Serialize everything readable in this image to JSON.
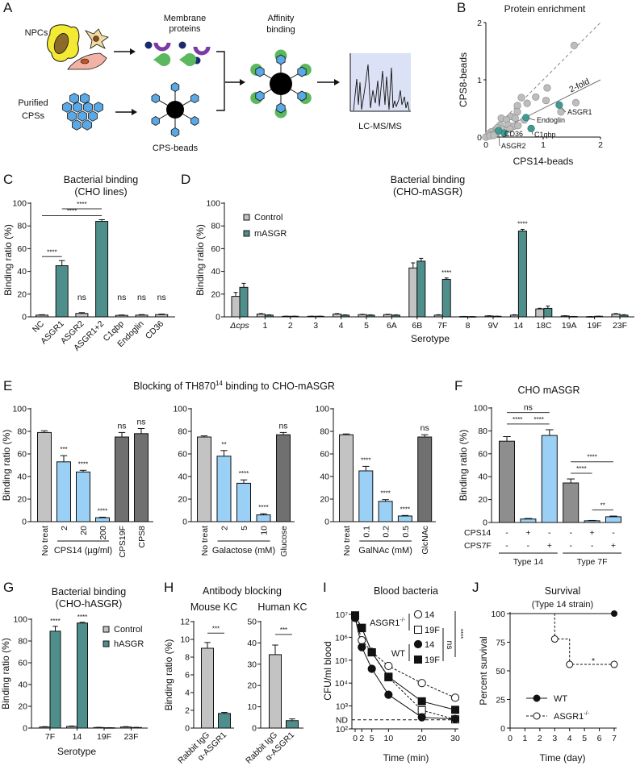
{
  "figure": {
    "panel_labels": [
      "A",
      "B",
      "C",
      "D",
      "E",
      "F",
      "G",
      "H",
      "I",
      "J"
    ]
  },
  "colors": {
    "teal": "#4f8f8b",
    "light_gray": "#c3c3c3",
    "light_blue": "#9ad0f5",
    "dark_gray": "#707070",
    "mid_gray": "#8e8e8e",
    "highlight_point": "#3f9a92",
    "gray_point": "#bdbdbd",
    "msms_bg": "#dce2f6"
  },
  "schematic": {
    "npcs": "NPCs",
    "membrane_proteins": [
      "Membrane",
      "proteins"
    ],
    "affinity_binding": [
      "Affinity",
      "binding"
    ],
    "purified_cpss": [
      "Purified",
      "CPSs"
    ],
    "cps_beads": "CPS-beads",
    "lcms": "LC-MS/MS"
  },
  "panel_e_title": {
    "prefix": "Blocking of TH870",
    "superscript": "14",
    "suffix": " binding to CHO-mASGR"
  },
  "panel_h_title": "Antibody blocking",
  "chart_data": [
    {
      "type": "scatter",
      "title": "Protein enrichment",
      "xlabel": "CPS14-beads",
      "ylabel": "CPS8-beads",
      "xlim": [
        0,
        2
      ],
      "ylim": [
        0,
        2
      ],
      "xticks": [
        0,
        1,
        2
      ],
      "yticks": [
        0,
        1,
        2
      ],
      "points": [
        [
          1.54,
          1.6
        ],
        [
          1.07,
          0.86
        ],
        [
          1.57,
          0.6
        ],
        [
          1.31,
          0.44
        ],
        [
          1.05,
          0.64
        ],
        [
          0.87,
          0.7
        ],
        [
          0.72,
          0.59
        ],
        [
          0.62,
          0.69
        ],
        [
          0.55,
          0.55
        ],
        [
          0.55,
          0.44
        ],
        [
          0.44,
          0.36
        ],
        [
          0.51,
          0.33
        ],
        [
          0.67,
          0.3
        ],
        [
          0.27,
          0.33
        ],
        [
          0.36,
          0.3
        ],
        [
          0.39,
          0.21
        ],
        [
          0.49,
          0.19
        ],
        [
          0.56,
          0.2
        ],
        [
          0.42,
          0.14
        ],
        [
          0.25,
          0.21
        ],
        [
          0.28,
          0.14
        ],
        [
          0.16,
          0.12
        ],
        [
          0.09,
          0.09
        ],
        [
          0.05,
          0.05
        ],
        [
          0.12,
          0.05
        ],
        [
          0.17,
          0.06
        ],
        [
          0.0,
          0.0
        ],
        [
          0.07,
          0.02
        ],
        [
          0.2,
          0.16
        ],
        [
          0.14,
          0.03
        ]
      ],
      "highlighted": [
        {
          "label": "ASGR1",
          "x": 1.28,
          "y": 0.56
        },
        {
          "label": "Endoglin",
          "x": 0.7,
          "y": 0.34
        },
        {
          "label": "C1qbp",
          "x": 0.79,
          "y": 0.15
        },
        {
          "label": "CD36",
          "x": 0.32,
          "y": 0.07
        },
        {
          "label": "ASGR2",
          "x": 0.22,
          "y": 0.11
        }
      ],
      "reference_lines": [
        {
          "slope": 1,
          "style": "dashed"
        },
        {
          "slope": 0.5,
          "style": "solid",
          "label": "2-fold"
        }
      ]
    },
    {
      "type": "bar",
      "title": [
        "Bacterial binding",
        "(CHO lines)"
      ],
      "ylabel": "Binding ratio (%)",
      "ylim": [
        0,
        100
      ],
      "yticks": [
        0,
        20,
        40,
        60,
        80,
        100
      ],
      "categories": [
        "NC",
        "ASGR1",
        "ASGR2",
        "ASGR1+2",
        "C1qbp",
        "Endoglin",
        "CD36"
      ],
      "series": [
        {
          "values": [
            1.5,
            45,
            3,
            84,
            1.3,
            1.5,
            2
          ],
          "errors": [
            0.4,
            4.5,
            0.7,
            1.5,
            0.4,
            0.5,
            0.5
          ],
          "colors": [
            "#c3c3c3",
            "#4f8f8b",
            "#c3c3c3",
            "#4f8f8b",
            "#c3c3c3",
            "#c3c3c3",
            "#c3c3c3"
          ]
        }
      ],
      "significance": [
        "",
        "",
        "ns",
        "",
        "ns",
        "ns",
        "ns"
      ],
      "brackets": [
        {
          "from": 0,
          "to": 1,
          "text": "****"
        },
        {
          "from": 0,
          "to": 3,
          "text": "****"
        },
        {
          "from": 1,
          "to": 3,
          "text": "****"
        }
      ]
    },
    {
      "type": "bar",
      "title": [
        "Bacterial binding",
        "(CHO-mASGR)"
      ],
      "ylabel": "Binding ratio (%)",
      "xlabel": "Serotype",
      "ylim": [
        0,
        100
      ],
      "yticks": [
        0,
        20,
        40,
        60,
        80,
        100
      ],
      "categories": [
        "Δcps",
        "1",
        "2",
        "3",
        "4",
        "5",
        "6A",
        "6B",
        "7F",
        "8",
        "9V",
        "14",
        "18C",
        "19A",
        "19F",
        "23F"
      ],
      "series": [
        {
          "name": "Control",
          "color": "#c3c3c3",
          "values": [
            18,
            2.5,
            0.5,
            0.5,
            2.5,
            2,
            2,
            43,
            1.5,
            0.3,
            0.8,
            1.5,
            7,
            0.8,
            0.2,
            2.5
          ],
          "errors": [
            3.5,
            0.4,
            0.1,
            0.1,
            0.4,
            0.3,
            0.3,
            4.5,
            0.4,
            0.1,
            0.2,
            0.4,
            0.6,
            0.2,
            0.1,
            0.4
          ]
        },
        {
          "name": "mASGR",
          "color": "#4f8f8b",
          "values": [
            26,
            1.5,
            0.5,
            0.5,
            1.5,
            1.5,
            1.5,
            49,
            33,
            0.2,
            0.5,
            75.5,
            7.5,
            0.3,
            0.5,
            1.5
          ],
          "errors": [
            3.5,
            0.3,
            0.1,
            0.1,
            0.3,
            0.3,
            0.3,
            2.5,
            1.2,
            0.1,
            0.1,
            1.5,
            2,
            0.1,
            0.1,
            0.4
          ],
          "significance": [
            "",
            "",
            "",
            "",
            "",
            "",
            "",
            "",
            "****",
            "",
            "",
            "****",
            "",
            "",
            "",
            ""
          ]
        }
      ]
    },
    {
      "type": "bar",
      "ylabel": "Binding ratio (%)",
      "ylim": [
        0,
        100
      ],
      "yticks": [
        0,
        20,
        40,
        60,
        80,
        100
      ],
      "categories": [
        "No treat",
        "2",
        "20",
        "200",
        "CPS19F",
        "CPS8"
      ],
      "series": [
        {
          "values": [
            79,
            53,
            44,
            3.5,
            75,
            78
          ],
          "errors": [
            1.5,
            5.5,
            1.5,
            0.5,
            4,
            4.5
          ],
          "colors": [
            "#c3c3c3",
            "#9ad0f5",
            "#9ad0f5",
            "#9ad0f5",
            "#707070",
            "#707070"
          ]
        }
      ],
      "significance": [
        "",
        "***",
        "****",
        "****",
        "ns",
        "ns"
      ],
      "group": {
        "label": "CPS14 (µg/ml)",
        "from": 1,
        "to": 3
      }
    },
    {
      "type": "bar",
      "ylim": [
        0,
        100
      ],
      "yticks": [
        0,
        20,
        40,
        60,
        80,
        100
      ],
      "categories": [
        "No treat",
        "2",
        "5",
        "10",
        "Glucose"
      ],
      "series": [
        {
          "values": [
            75,
            58,
            34,
            6,
            77
          ],
          "errors": [
            1,
            5,
            3,
            1,
            2
          ],
          "colors": [
            "#c3c3c3",
            "#9ad0f5",
            "#9ad0f5",
            "#9ad0f5",
            "#707070"
          ]
        }
      ],
      "significance": [
        "",
        "**",
        "****",
        "****",
        "ns"
      ],
      "group": {
        "label": "Galactose (mM)",
        "from": 1,
        "to": 3
      }
    },
    {
      "type": "bar",
      "ylim": [
        0,
        100
      ],
      "yticks": [
        0,
        20,
        40,
        60,
        80,
        100
      ],
      "categories": [
        "No treat",
        "0.1",
        "0.2",
        "0.5",
        "GlcNAc"
      ],
      "series": [
        {
          "values": [
            77,
            45,
            18,
            5,
            75
          ],
          "errors": [
            0.7,
            4,
            1.5,
            0.5,
            2
          ],
          "colors": [
            "#c3c3c3",
            "#9ad0f5",
            "#9ad0f5",
            "#9ad0f5",
            "#707070"
          ]
        }
      ],
      "significance": [
        "",
        "****",
        "****",
        "****",
        "ns"
      ],
      "group": {
        "label": "GalNAc (mM)",
        "from": 1,
        "to": 3
      }
    },
    {
      "type": "bar",
      "title": "CHO mASGR",
      "ylabel": "Binding ratio (%)",
      "ylim": [
        0,
        100
      ],
      "yticks": [
        0,
        20,
        40,
        60,
        80,
        100
      ],
      "categories": [
        "",
        "",
        "",
        "",
        "",
        ""
      ],
      "series": [
        {
          "values": [
            71,
            3,
            76,
            34.5,
            1.5,
            5
          ],
          "errors": [
            4,
            0.5,
            5,
            3.5,
            0.3,
            0.6
          ],
          "colors": [
            "#8e8e8e",
            "#9ad0f5",
            "#9ad0f5",
            "#8e8e8e",
            "#9ad0f5",
            "#9ad0f5"
          ]
        }
      ],
      "treatments": [
        {
          "label": "CPS14",
          "values": [
            "-",
            "+",
            "-",
            "-",
            "+",
            "-"
          ]
        },
        {
          "label": "CPS7F",
          "values": [
            "-",
            "-",
            "+",
            "-",
            "-",
            "+"
          ]
        }
      ],
      "groups": [
        {
          "label": "Type 14",
          "from": 0,
          "to": 2
        },
        {
          "label": "Type 7F",
          "from": 3,
          "to": 5
        }
      ],
      "brackets": [
        {
          "from": 0,
          "to": 2,
          "text": "ns"
        },
        {
          "from": 0,
          "to": 1,
          "text": "****"
        },
        {
          "from": 1,
          "to": 2,
          "text": "****"
        },
        {
          "from": 3,
          "to": 5,
          "text": "****"
        },
        {
          "from": 3,
          "to": 4,
          "text": "****"
        },
        {
          "from": 4,
          "to": 5,
          "text": "**"
        }
      ]
    },
    {
      "type": "bar",
      "title": [
        "Bacterial binding",
        "(CHO-hASGR)"
      ],
      "ylabel": "Binding ratio (%)",
      "xlabel": "Serotype",
      "ylim": [
        0,
        100
      ],
      "yticks": [
        0,
        20,
        40,
        60,
        80,
        100
      ],
      "categories": [
        "7F",
        "14",
        "19F",
        "23F"
      ],
      "series": [
        {
          "name": "Control",
          "color": "#c3c3c3",
          "values": [
            1,
            1.5,
            0.5,
            1
          ],
          "errors": [
            0.3,
            0.4,
            0.2,
            0.3
          ]
        },
        {
          "name": "hASGR",
          "color": "#4f8f8b",
          "values": [
            89,
            96.5,
            0.3,
            0.5
          ],
          "errors": [
            4.5,
            0.7,
            0.1,
            0.2
          ],
          "significance": [
            "****",
            "****",
            "",
            ""
          ]
        }
      ]
    },
    {
      "type": "bar",
      "title": "Mouse KC",
      "ylabel": "Binding ratio (%)",
      "ylim": [
        0,
        12
      ],
      "yticks": [
        0,
        2,
        4,
        6,
        8,
        10,
        12
      ],
      "categories": [
        "Rabbit IgG",
        "α-ASGR1"
      ],
      "series": [
        {
          "values": [
            9,
            1.65
          ],
          "errors": [
            0.65,
            0.12
          ],
          "colors": [
            "#c3c3c3",
            "#4f8f8b"
          ]
        }
      ],
      "brackets": [
        {
          "from": 0,
          "to": 1,
          "text": "***"
        }
      ]
    },
    {
      "type": "bar",
      "title": "Human KC",
      "ylim": [
        0,
        50
      ],
      "yticks": [
        0,
        10,
        20,
        30,
        40,
        50
      ],
      "categories": [
        "Rabbit IgG",
        "α-ASGR1"
      ],
      "series": [
        {
          "values": [
            34.5,
            3.5
          ],
          "errors": [
            4.5,
            0.8
          ],
          "colors": [
            "#c3c3c3",
            "#4f8f8b"
          ]
        }
      ],
      "brackets": [
        {
          "from": 0,
          "to": 1,
          "text": "***"
        }
      ]
    },
    {
      "type": "line",
      "title": "Blood bacteria",
      "xlabel": "Time (min)",
      "ylabel": "CFU/ml blood",
      "yscale": "log",
      "x": [
        0,
        2,
        5,
        10,
        20,
        30
      ],
      "xticks": [
        0,
        2,
        5,
        10,
        20,
        30
      ],
      "xtick_labels": [
        "0",
        "2",
        "5",
        "10",
        "20",
        "30"
      ],
      "ylim": [
        100,
        10000000
      ],
      "ytick_labels": [
        "10²",
        "10³",
        "10⁴",
        "10⁵",
        "10⁶",
        "10⁷"
      ],
      "nd_label": "ND",
      "nd_value": 250,
      "legend_groups": [
        {
          "label": "ASGR1",
          "superscript": "-/-"
        },
        {
          "label": "WT"
        }
      ],
      "series": [
        {
          "group": 0,
          "name": "14",
          "marker": "circle",
          "filled": false,
          "dashed": true,
          "values": [
            8000000,
            740000,
            230000,
            56000,
            10000,
            2300
          ]
        },
        {
          "group": 0,
          "name": "19F",
          "marker": "square",
          "filled": false,
          "dashed": true,
          "values": [
            9000000,
            2500000,
            220000,
            18000,
            650,
            260
          ]
        },
        {
          "group": 1,
          "name": "14",
          "marker": "circle",
          "filled": true,
          "dashed": false,
          "values": [
            7000000,
            370000,
            42000,
            3100,
            320,
            270
          ]
        },
        {
          "group": 1,
          "name": "19F",
          "marker": "square",
          "filled": true,
          "dashed": false,
          "values": [
            9000000,
            2600000,
            220000,
            19000,
            1600,
            680
          ]
        }
      ],
      "stats": [
        {
          "text": "ns"
        },
        {
          "text": "****"
        }
      ]
    },
    {
      "type": "line",
      "title": [
        "Survival",
        "(Type 14 strain)"
      ],
      "xlabel": "Time (day)",
      "ylabel": "Percent survival",
      "xlim": [
        0,
        7
      ],
      "ylim": [
        0,
        100
      ],
      "xticks": [
        "0",
        "1",
        "2",
        "3",
        "4",
        "5",
        "6",
        "7"
      ],
      "yticks": [
        0,
        25,
        50,
        75,
        100
      ],
      "step": true,
      "x": [
        0,
        3,
        4,
        7
      ],
      "series": [
        {
          "name": "WT",
          "filled": true,
          "dashed": false,
          "values": [
            100,
            100,
            100,
            100
          ]
        },
        {
          "name": "ASGR1",
          "superscript": "-/-",
          "filled": false,
          "dashed": true,
          "values": [
            100,
            77.8,
            55.6,
            55.6
          ]
        }
      ],
      "significance": "*"
    }
  ]
}
